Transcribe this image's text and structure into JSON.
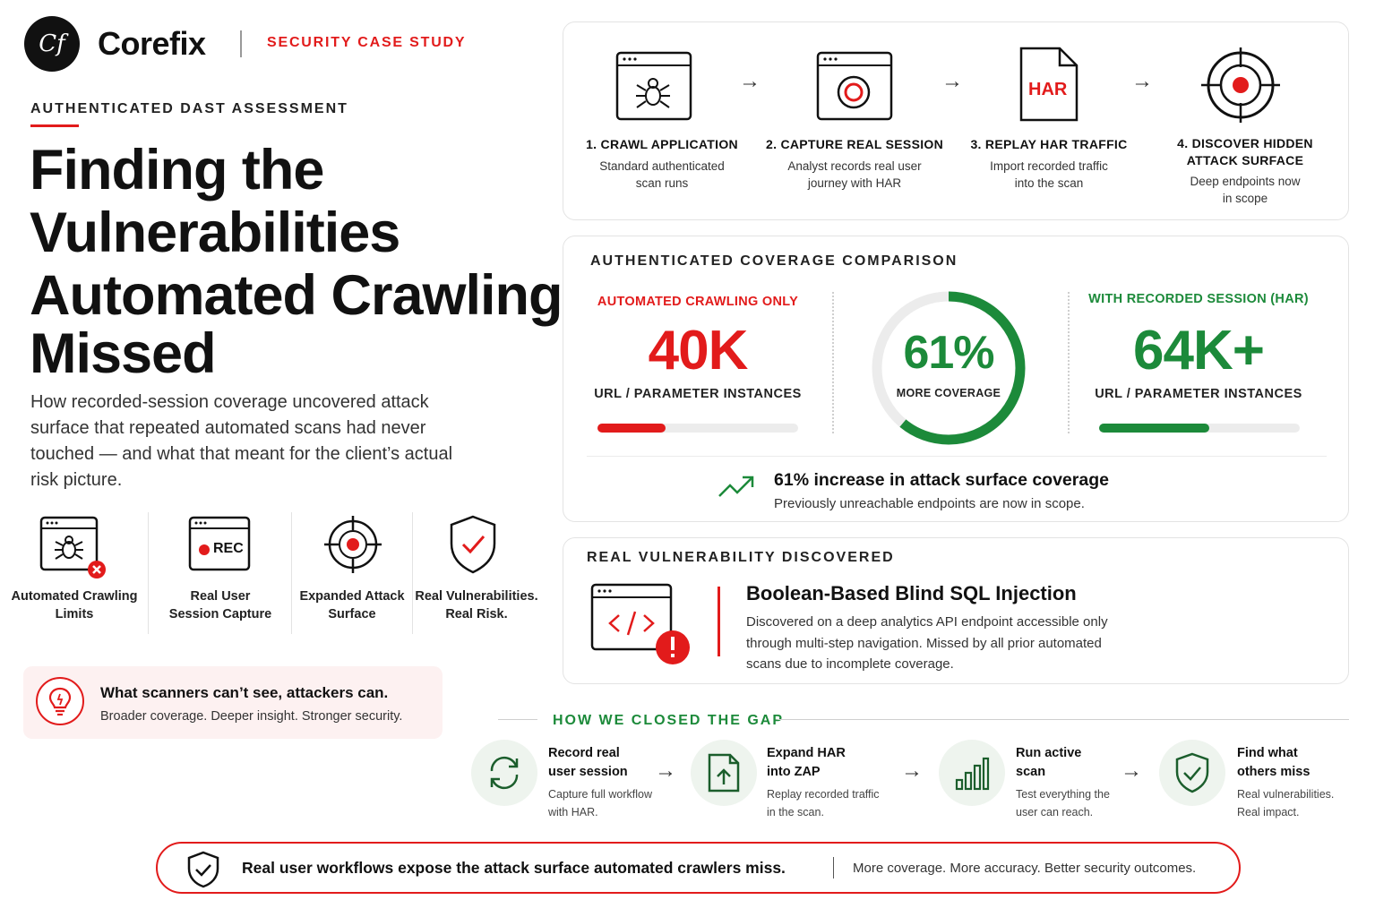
{
  "header": {
    "logo_initials": "Cf",
    "brand": "Corefix",
    "tagline": "SECURITY CASE STUDY"
  },
  "hero": {
    "eyebrow": "AUTHENTICATED DAST ASSESSMENT",
    "title_line1": "Finding the",
    "title_line2": "Vulnerabilities",
    "title_line3": "Automated Crawling",
    "title_line4": "Missed",
    "lead": "How recorded-session coverage uncovered attack surface that repeated automated scans had never touched — and what that meant for the client’s actual risk picture."
  },
  "features": [
    {
      "label_line1": "Automated Crawling",
      "label_line2": "Limits",
      "icon": "spider-browser-icon"
    },
    {
      "label_line1": "Real User",
      "label_line2": "Session Capture",
      "icon": "rec-browser-icon",
      "rec_label": "REC"
    },
    {
      "label_line1": "Expanded Attack",
      "label_line2": "Surface",
      "icon": "target-icon"
    },
    {
      "label_line1": "Real Vulnerabilities.",
      "label_line2": "Real Risk.",
      "icon": "shield-check-icon"
    }
  ],
  "callout": {
    "title": "What scanners can’t see, attackers can.",
    "subtitle": "Broader coverage. Deeper insight. Stronger security."
  },
  "process": [
    {
      "title": "1. CRAWL APPLICATION",
      "desc_line1": "Standard authenticated",
      "desc_line2": "scan runs"
    },
    {
      "title": "2. CAPTURE REAL SESSION",
      "desc_line1": "Analyst records real user",
      "desc_line2": "journey with HAR"
    },
    {
      "title": "3. REPLAY HAR TRAFFIC",
      "desc_line1": "Import recorded traffic",
      "desc_line2": "into the scan",
      "file_label": "HAR"
    },
    {
      "title_line1": "4. DISCOVER HIDDEN",
      "title_line2": "ATTACK SURFACE",
      "desc_line1": "Deep endpoints now",
      "desc_line2": "in scope"
    }
  ],
  "coverage": {
    "section_title": "AUTHENTICATED COVERAGE COMPARISON",
    "left": {
      "label": "AUTOMATED CRAWLING ONLY",
      "value": "40K",
      "unit": "URL / PARAMETER INSTANCES",
      "bar_fraction": 0.34
    },
    "center": {
      "value": "61%",
      "label": "MORE COVERAGE",
      "ring_fraction": 0.61
    },
    "right": {
      "label": "WITH RECORDED SESSION (HAR)",
      "value": "64K+",
      "unit": "URL / PARAMETER INSTANCES",
      "bar_fraction": 0.55
    },
    "insight_title": "61% increase in attack surface coverage",
    "insight_subtitle": "Previously unreachable endpoints are now in scope."
  },
  "vuln": {
    "section_title": "REAL VULNERABILITY DISCOVERED",
    "title": "Boolean-Based Blind SQL Injection",
    "desc_line1": "Discovered on a deep analytics API endpoint accessible only",
    "desc_line2": "through multi-step navigation. Missed by all prior automated",
    "desc_line3": "scans due to incomplete coverage."
  },
  "gap": {
    "section_title": "HOW WE CLOSED THE GAP",
    "steps": [
      {
        "title_line1": "Record real",
        "title_line2": "user session",
        "desc_line1": "Capture full workflow",
        "desc_line2": "with HAR."
      },
      {
        "title_line1": "Expand HAR",
        "title_line2": "into ZAP",
        "desc_line1": "Replay recorded traffic",
        "desc_line2": "in the scan."
      },
      {
        "title_line1": "Run active",
        "title_line2": "scan",
        "desc_line1": "Test everything the",
        "desc_line2": "user can reach."
      },
      {
        "title_line1": "Find what",
        "title_line2": "others miss",
        "desc_line1": "Real vulnerabilities.",
        "desc_line2": "Real impact."
      }
    ]
  },
  "footer": {
    "main": "Real user workflows expose the attack surface automated crawlers miss.",
    "secondary": "More coverage. More accuracy. Better security outcomes."
  },
  "colors": {
    "accent_red": "#e21b1b",
    "accent_green": "#1c8a3a",
    "text": "#111111"
  }
}
